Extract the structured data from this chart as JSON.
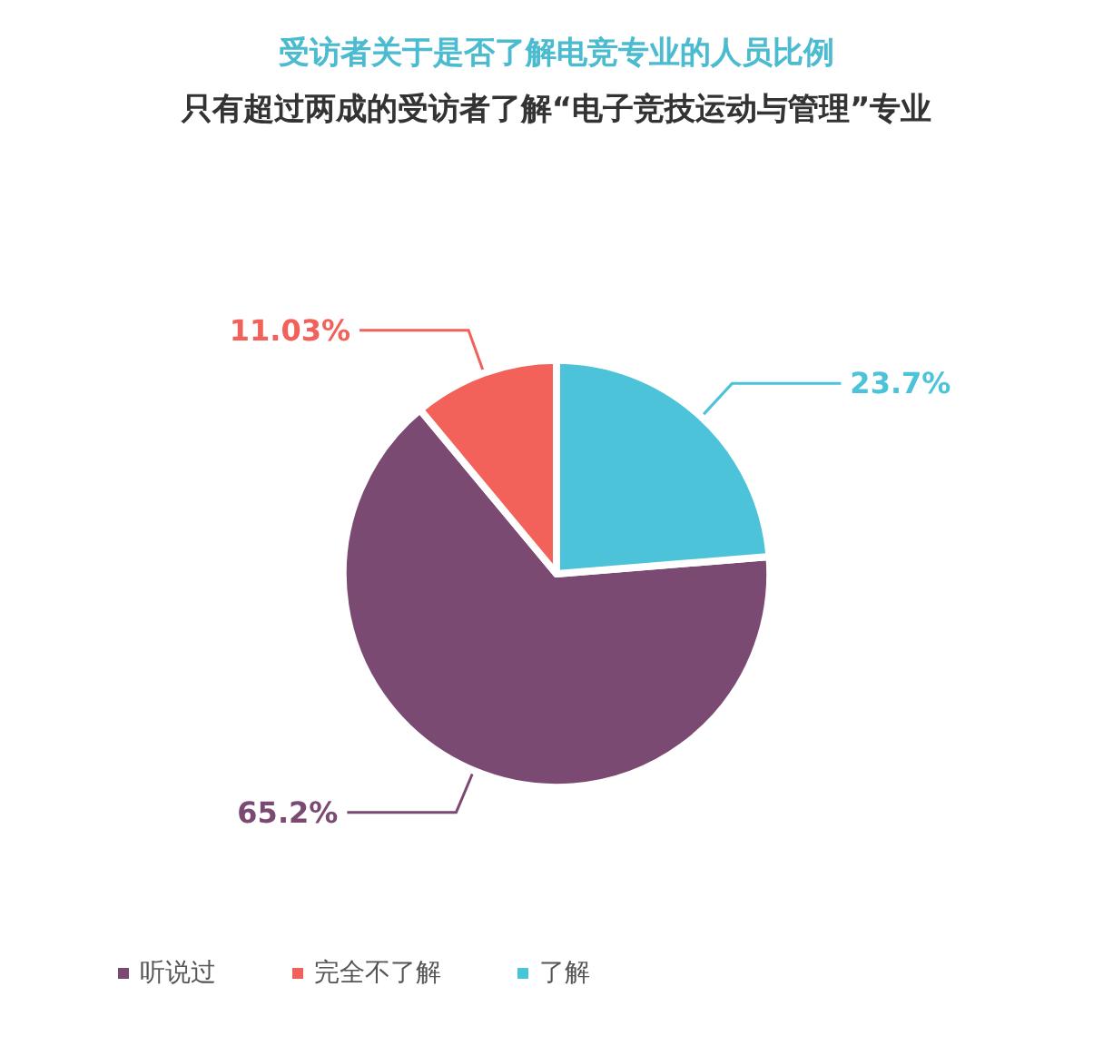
{
  "chart_data": {
    "type": "pie",
    "title": "受访者关于是否了解电竞专业的人员比例",
    "subtitle": "只有超过两成的受访者了解“电子竞技运动与管理”专业",
    "categories": [
      "听说过",
      "完全不了解",
      "了解"
    ],
    "values": [
      65.2,
      11.03,
      23.7
    ],
    "value_labels": [
      "65.2%",
      "11.03%",
      "23.7%"
    ],
    "colors": [
      "#7b4a72",
      "#f2625a",
      "#4cc3d9"
    ],
    "legend": "bottom left"
  }
}
